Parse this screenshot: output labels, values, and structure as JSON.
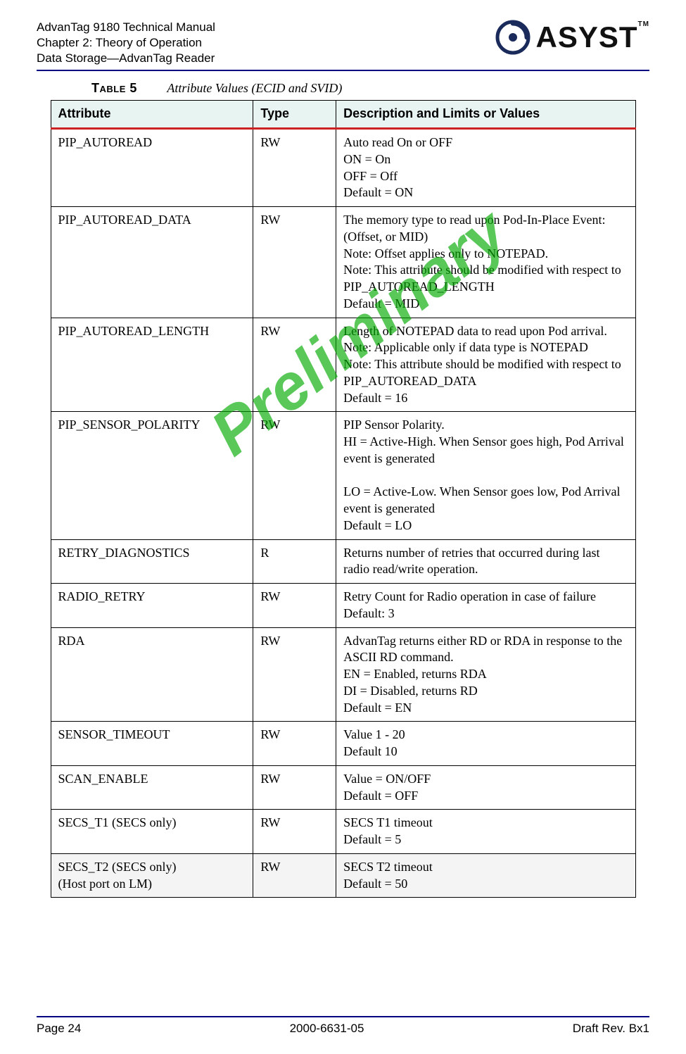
{
  "header": {
    "line1": "AdvanTag 9180 Technical Manual",
    "line2": "Chapter 2: Theory of Operation",
    "line3": "Data Storage—AdvanTag Reader",
    "logo_text": "ASYST",
    "tm": "TM"
  },
  "watermark": "Preliminary",
  "table_caption_label": "Table 5",
  "table_caption_title": "Attribute Values (ECID and SVID)",
  "columns": {
    "attribute": "Attribute",
    "type": "Type",
    "description": "Description and Limits or Values"
  },
  "rows": [
    {
      "attr": "PIP_AUTOREAD",
      "type": "RW",
      "desc": "Auto read On or OFF\nON = On\nOFF = Off\nDefault = ON"
    },
    {
      "attr": "PIP_AUTOREAD_DATA",
      "type": "RW",
      "desc": "The memory type to read upon Pod-In-Place Event:\n(Offset, or MID)\nNote: Offset applies only to NOTEPAD.\nNote: This attribute should be modified with respect to PIP_AUTOREAD_LENGTH\nDefault = MID"
    },
    {
      "attr": "PIP_AUTOREAD_LENGTH",
      "type": "RW",
      "desc": "Length of NOTEPAD data to read upon Pod arrival.\nNote: Applicable only if data type is NOTEPAD\nNote: This attribute should be modified with respect to PIP_AUTOREAD_DATA\nDefault = 16"
    },
    {
      "attr": "PIP_SENSOR_POLARITY",
      "type": "RW",
      "desc": "PIP Sensor Polarity.\nHI = Active-High. When Sensor goes high, Pod Arrival event is generated\n\nLO = Active-Low. When Sensor goes low, Pod Arrival event is generated\nDefault = LO"
    },
    {
      "attr": "RETRY_DIAGNOSTICS",
      "type": "R",
      "desc": "Returns number of retries that occurred during last radio read/write operation."
    },
    {
      "attr": "RADIO_RETRY",
      "type": "RW",
      "desc": "Retry Count for Radio operation in case of failure\nDefault: 3"
    },
    {
      "attr": "RDA",
      "type": "RW",
      "desc": "AdvanTag returns either RD or RDA in response to the ASCII RD command.\nEN = Enabled, returns RDA\nDI = Disabled, returns RD\nDefault = EN"
    },
    {
      "attr": "SENSOR_TIMEOUT",
      "type": "RW",
      "desc": "Value 1 - 20\nDefault 10"
    },
    {
      "attr": "SCAN_ENABLE",
      "type": "RW",
      "desc": "Value = ON/OFF\nDefault = OFF"
    },
    {
      "attr": "SECS_T1 (SECS only)",
      "type": "RW",
      "desc": "SECS T1 timeout\nDefault = 5"
    },
    {
      "attr": "SECS_T2 (SECS only)\n(Host port on LM)",
      "type": "RW",
      "desc": "SECS T2 timeout\nDefault = 50"
    }
  ],
  "footer": {
    "left": "Page 24",
    "center": "2000-6631-05",
    "right": "Draft Rev. Bx1"
  }
}
